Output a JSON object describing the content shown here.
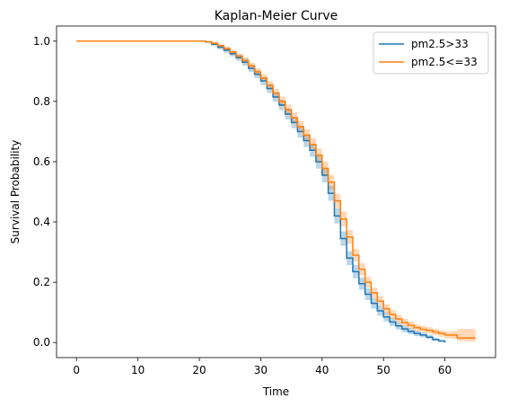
{
  "chart_data": {
    "type": "line",
    "title": "Kaplan-Meier Curve",
    "xlabel": "Time",
    "ylabel": "Survival Probability",
    "xlim": [
      -3.25,
      68.25
    ],
    "ylim": [
      -0.05,
      1.05
    ],
    "xticks": [
      0,
      10,
      20,
      30,
      40,
      50,
      60
    ],
    "xtick_labels": [
      "0",
      "10",
      "20",
      "30",
      "40",
      "50",
      "60"
    ],
    "yticks": [
      0.0,
      0.2,
      0.4,
      0.6,
      0.8,
      1.0
    ],
    "ytick_labels": [
      "0.0",
      "0.2",
      "0.4",
      "0.6",
      "0.8",
      "1.0"
    ],
    "grid": false,
    "legend_position": "top-right",
    "steps": "post",
    "series": [
      {
        "name": "pm2.5>33",
        "color": "#1f77b4",
        "x": [
          0,
          21,
          22,
          23,
          24,
          25,
          26,
          27,
          28,
          29,
          30,
          31,
          32,
          33,
          34,
          35,
          36,
          37,
          38,
          39,
          40,
          41,
          42,
          43,
          44,
          45,
          46,
          47,
          48,
          49,
          50,
          51,
          52,
          53,
          54,
          55,
          56,
          57,
          58,
          59,
          60
        ],
        "survival": [
          1.0,
          0.997,
          0.99,
          0.98,
          0.97,
          0.958,
          0.945,
          0.93,
          0.91,
          0.89,
          0.868,
          0.843,
          0.815,
          0.788,
          0.758,
          0.73,
          0.7,
          0.67,
          0.638,
          0.6,
          0.555,
          0.495,
          0.42,
          0.345,
          0.28,
          0.235,
          0.195,
          0.16,
          0.13,
          0.105,
          0.085,
          0.068,
          0.055,
          0.045,
          0.037,
          0.03,
          0.025,
          0.018,
          0.01,
          0.005,
          0.0
        ],
        "ci_lower": [
          1.0,
          0.995,
          0.985,
          0.973,
          0.962,
          0.949,
          0.935,
          0.919,
          0.898,
          0.877,
          0.854,
          0.828,
          0.799,
          0.771,
          0.74,
          0.711,
          0.68,
          0.649,
          0.616,
          0.577,
          0.531,
          0.47,
          0.395,
          0.321,
          0.257,
          0.213,
          0.175,
          0.141,
          0.113,
          0.089,
          0.07,
          0.055,
          0.043,
          0.034,
          0.027,
          0.021,
          0.017,
          0.011,
          0.005,
          0.002,
          0.0
        ],
        "ci_upper": [
          1.0,
          0.999,
          0.995,
          0.987,
          0.978,
          0.967,
          0.955,
          0.941,
          0.922,
          0.903,
          0.882,
          0.858,
          0.831,
          0.805,
          0.776,
          0.749,
          0.72,
          0.691,
          0.66,
          0.623,
          0.579,
          0.52,
          0.445,
          0.369,
          0.303,
          0.257,
          0.215,
          0.179,
          0.147,
          0.121,
          0.1,
          0.081,
          0.067,
          0.056,
          0.047,
          0.039,
          0.033,
          0.025,
          0.015,
          0.008,
          0.0
        ]
      },
      {
        "name": "pm2.5<=33",
        "color": "#ff7f0e",
        "x": [
          0,
          21,
          22,
          23,
          24,
          25,
          26,
          27,
          28,
          29,
          30,
          31,
          32,
          33,
          34,
          35,
          36,
          37,
          38,
          39,
          40,
          41,
          42,
          43,
          44,
          45,
          46,
          47,
          48,
          49,
          50,
          51,
          52,
          53,
          54,
          55,
          56,
          57,
          58,
          59,
          60,
          61,
          62,
          63,
          64,
          65
        ],
        "survival": [
          1.0,
          0.998,
          0.993,
          0.985,
          0.975,
          0.963,
          0.95,
          0.936,
          0.918,
          0.898,
          0.877,
          0.853,
          0.827,
          0.8,
          0.772,
          0.745,
          0.716,
          0.688,
          0.657,
          0.622,
          0.578,
          0.532,
          0.47,
          0.41,
          0.35,
          0.29,
          0.243,
          0.2,
          0.165,
          0.137,
          0.112,
          0.093,
          0.078,
          0.066,
          0.057,
          0.049,
          0.044,
          0.04,
          0.035,
          0.03,
          0.025,
          0.025,
          0.015,
          0.015,
          0.015,
          0.015
        ],
        "ci_lower": [
          1.0,
          0.996,
          0.989,
          0.979,
          0.968,
          0.955,
          0.941,
          0.926,
          0.907,
          0.886,
          0.864,
          0.839,
          0.812,
          0.784,
          0.755,
          0.727,
          0.697,
          0.668,
          0.636,
          0.6,
          0.555,
          0.508,
          0.446,
          0.386,
          0.327,
          0.269,
          0.223,
          0.182,
          0.148,
          0.121,
          0.097,
          0.079,
          0.065,
          0.054,
          0.045,
          0.038,
          0.033,
          0.029,
          0.024,
          0.019,
          0.014,
          0.012,
          0.005,
          0.004,
          0.003,
          0.003
        ],
        "ci_upper": [
          1.0,
          1.0,
          0.997,
          0.991,
          0.982,
          0.971,
          0.959,
          0.946,
          0.929,
          0.91,
          0.89,
          0.867,
          0.842,
          0.816,
          0.789,
          0.763,
          0.735,
          0.708,
          0.678,
          0.644,
          0.601,
          0.556,
          0.494,
          0.434,
          0.373,
          0.311,
          0.263,
          0.218,
          0.182,
          0.153,
          0.127,
          0.107,
          0.091,
          0.078,
          0.069,
          0.06,
          0.055,
          0.051,
          0.046,
          0.041,
          0.036,
          0.038,
          0.045,
          0.045,
          0.045,
          0.045
        ]
      }
    ]
  }
}
